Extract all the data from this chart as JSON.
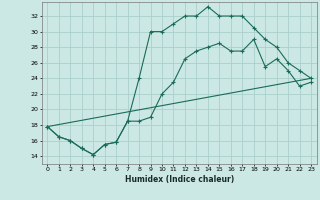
{
  "xlabel": "Humidex (Indice chaleur)",
  "bg_color": "#cce8e4",
  "grid_color": "#aacfcc",
  "line_color": "#1a6b5a",
  "xlim": [
    -0.5,
    23.5
  ],
  "ylim": [
    13.0,
    33.8
  ],
  "yticks": [
    14,
    16,
    18,
    20,
    22,
    24,
    26,
    28,
    30,
    32
  ],
  "xticks": [
    0,
    1,
    2,
    3,
    4,
    5,
    6,
    7,
    8,
    9,
    10,
    11,
    12,
    13,
    14,
    15,
    16,
    17,
    18,
    19,
    20,
    21,
    22,
    23
  ],
  "line1_x": [
    0,
    1,
    2,
    3,
    4,
    5,
    6,
    7,
    8,
    9,
    10,
    11,
    12,
    13,
    14,
    15,
    16,
    17,
    18,
    19,
    20,
    21,
    22,
    23
  ],
  "line1_y": [
    17.8,
    16.5,
    16.0,
    15.0,
    14.2,
    15.5,
    15.8,
    18.5,
    18.5,
    19.0,
    22.0,
    23.5,
    26.5,
    27.5,
    28.0,
    28.5,
    27.5,
    27.5,
    29.0,
    25.5,
    26.5,
    25.0,
    23.0,
    23.5
  ],
  "line2_x": [
    0,
    1,
    2,
    3,
    4,
    5,
    6,
    7,
    8,
    9,
    10,
    11,
    12,
    13,
    14,
    15,
    16,
    17,
    18,
    19,
    20,
    21,
    22,
    23
  ],
  "line2_y": [
    17.8,
    16.5,
    16.0,
    15.0,
    14.2,
    15.5,
    15.8,
    18.5,
    24.0,
    30.0,
    30.0,
    31.0,
    32.0,
    32.0,
    33.2,
    32.0,
    32.0,
    32.0,
    30.5,
    29.0,
    28.0,
    26.0,
    25.0,
    24.0
  ],
  "line3_x": [
    0,
    23
  ],
  "line3_y": [
    17.8,
    24.0
  ]
}
